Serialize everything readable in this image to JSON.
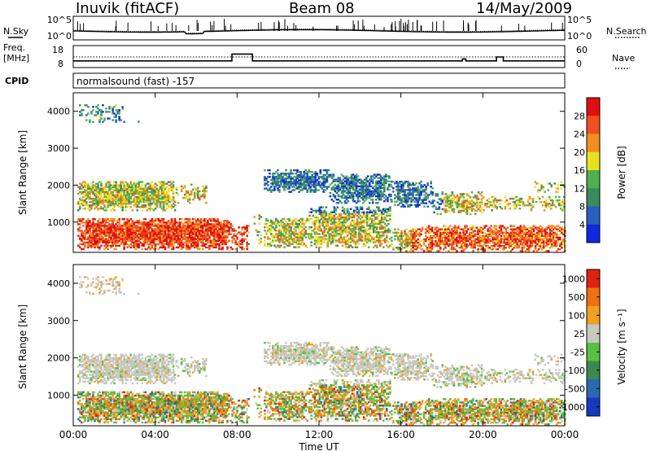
{
  "header": {
    "radar": "Inuvik (fitACF)",
    "beam": "Beam 08",
    "date": "14/May/2009"
  },
  "labels": {
    "nsky": "N.Sky",
    "nsearch": "N.Search",
    "freq_line1": "Freq.",
    "freq_line2": "[MHz]",
    "nave": "Nave",
    "cpid": "CPID",
    "cpid_value": "normalsound (fast) -157",
    "ylabel": "Slant Range [km]",
    "xlabel": "Time UT",
    "power_label": "Power [dB]",
    "velocity_label": "Velocity [m s⁻¹]"
  },
  "chart_data": [
    {
      "type": "line",
      "panel": "noise",
      "series": [
        {
          "name": "N.Sky"
        },
        {
          "name": "N.Search"
        }
      ],
      "y_ticks_left": [
        "10^5",
        "10^0"
      ],
      "y_ticks_right": [
        "10^5",
        "10^0"
      ],
      "scale": "log"
    },
    {
      "type": "line",
      "panel": "frequency / nave",
      "left_ylim": [
        8,
        18
      ],
      "left_ticks": [
        18,
        8
      ],
      "right_ylim": [
        0,
        60
      ],
      "right_ticks": [
        60,
        0
      ],
      "series": [
        {
          "name": "Freq.",
          "x": [
            "00:00",
            "07:40",
            "07:45",
            "08:40",
            "08:45",
            "18:20",
            "19:00",
            "19:10",
            "20:30",
            "20:40",
            "21:00",
            "24:00"
          ],
          "values": [
            11,
            11,
            14.5,
            14.5,
            11,
            11,
            12,
            11,
            11,
            13,
            11,
            11
          ]
        },
        {
          "name": "Nave",
          "values": [
            30,
            30
          ]
        }
      ]
    },
    {
      "type": "heatmap",
      "panel": "power",
      "x_ticks": [
        "00:00",
        "04:00",
        "08:00",
        "12:00",
        "16:00",
        "20:00",
        "00:00"
      ],
      "xlim_hours": [
        0,
        24
      ],
      "ylim_km": [
        180,
        4500
      ],
      "y_ticks": [
        1000,
        2000,
        3000,
        4000
      ],
      "colorbar_ticks": [
        4,
        8,
        12,
        16,
        20,
        24,
        28
      ],
      "colors": [
        "#1028e0",
        "#2860c0",
        "#3a8a60",
        "#50b050",
        "#e8e020",
        "#f09020",
        "#f05020",
        "#e01010"
      ]
    },
    {
      "type": "heatmap",
      "panel": "velocity",
      "x_ticks": [
        "00:00",
        "04:00",
        "08:00",
        "12:00",
        "16:00",
        "20:00",
        "00:00"
      ],
      "xlim_hours": [
        0,
        24
      ],
      "ylim_km": [
        180,
        4500
      ],
      "y_ticks": [
        1000,
        2000,
        3000,
        4000
      ],
      "colorbar_ticks": [
        "1000",
        "500",
        "100",
        "25",
        "-25",
        "-100",
        "-500",
        "-1000"
      ],
      "colors": [
        "#1838c0",
        "#2a6ab0",
        "#3a8a50",
        "#58c040",
        "#c8c8c0",
        "#f0a020",
        "#f07010",
        "#e02010"
      ]
    }
  ]
}
